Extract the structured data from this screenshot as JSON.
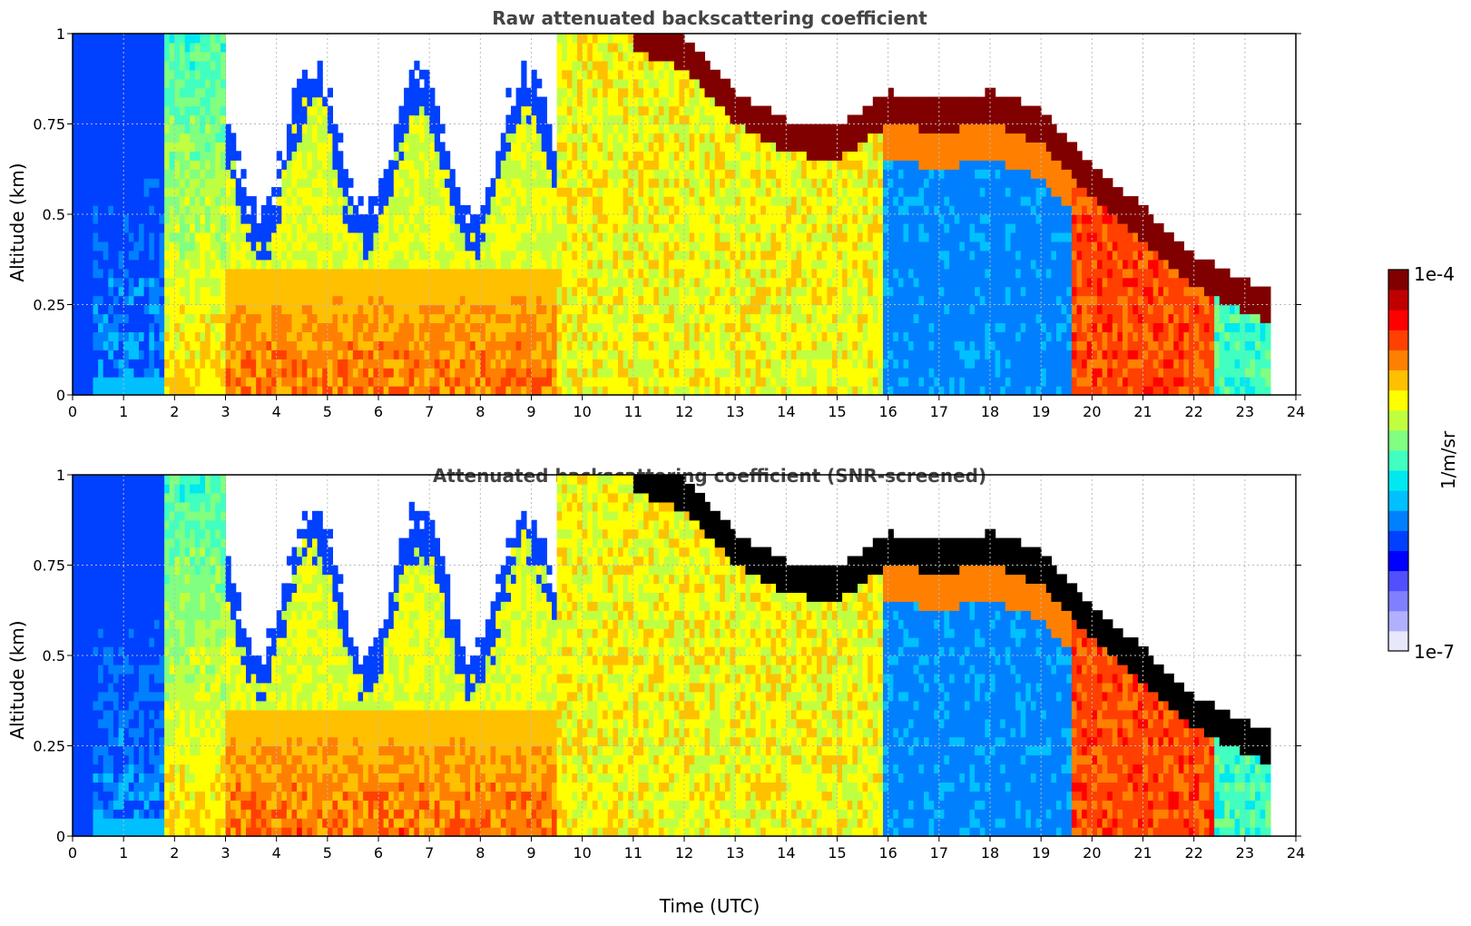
{
  "chart_data": [
    {
      "type": "heatmap",
      "title": "Raw attenuated backscattering coefficient",
      "xlabel": "",
      "ylabel": "Altitude (km)",
      "xlim": [
        0,
        24
      ],
      "ylim": [
        0,
        1
      ],
      "xticks": [
        "0",
        "1",
        "2",
        "3",
        "4",
        "5",
        "6",
        "7",
        "8",
        "9",
        "10",
        "11",
        "12",
        "13",
        "14",
        "15",
        "16",
        "17",
        "18",
        "19",
        "20",
        "21",
        "22",
        "23",
        "24"
      ],
      "yticks": [
        "0",
        "0.25",
        "0.5",
        "0.75",
        "1"
      ],
      "grid": true,
      "data_end_time": 23.5,
      "boundary_layer_top_km": [
        [
          11,
          1.0
        ],
        [
          12,
          0.95
        ],
        [
          13,
          0.8
        ],
        [
          14,
          0.72
        ],
        [
          15,
          0.7
        ],
        [
          16,
          0.8
        ],
        [
          17,
          0.78
        ],
        [
          18,
          0.8
        ],
        [
          19,
          0.75
        ],
        [
          20,
          0.6
        ],
        [
          21,
          0.48
        ],
        [
          22,
          0.35
        ],
        [
          23,
          0.28
        ],
        [
          23.5,
          0.25
        ]
      ]
    },
    {
      "type": "heatmap",
      "title": "Attenuated backscattering coefficient (SNR-screened)",
      "xlabel": "Time (UTC)",
      "ylabel": "Altitude (km)",
      "xlim": [
        0,
        24
      ],
      "ylim": [
        0,
        1
      ],
      "xticks": [
        "0",
        "1",
        "2",
        "3",
        "4",
        "5",
        "6",
        "7",
        "8",
        "9",
        "10",
        "11",
        "12",
        "13",
        "14",
        "15",
        "16",
        "17",
        "18",
        "19",
        "20",
        "21",
        "22",
        "23",
        "24"
      ],
      "yticks": [
        "0",
        "0.25",
        "0.5",
        "0.75",
        "1"
      ],
      "grid": true,
      "data_end_time": 23.5
    }
  ],
  "colorbar": {
    "label": "1/m/sr",
    "max_label": "1e-4",
    "min_label": "1e-7",
    "colormap": "jet",
    "colors": [
      "#e8e8fc",
      "#b0b0ff",
      "#8080ff",
      "#5050ff",
      "#0000ff",
      "#0040ff",
      "#0080ff",
      "#00c0ff",
      "#00e8f0",
      "#40ffc0",
      "#80ff80",
      "#c0ff40",
      "#ffff00",
      "#ffc000",
      "#ff8000",
      "#ff4000",
      "#ff0000",
      "#c00000",
      "#800000"
    ]
  }
}
